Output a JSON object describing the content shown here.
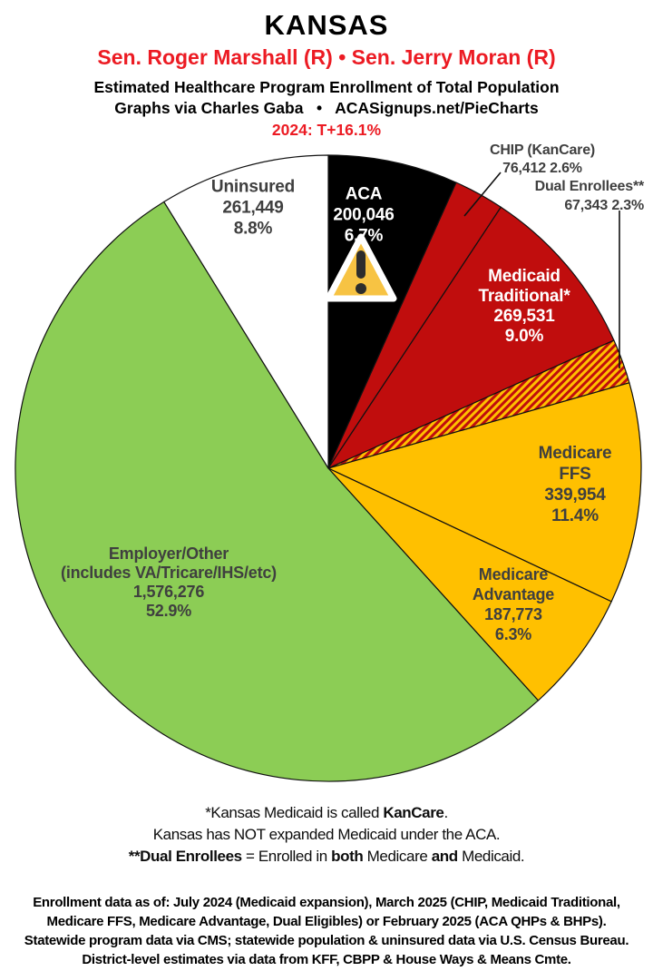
{
  "header": {
    "state": "KANSAS",
    "senators": "Sen. Roger Marshall (R) • Sen. Jerry Moran (R)",
    "subtitle1": "Estimated Healthcare Program Enrollment of Total Population",
    "subtitle2": "Graphs via Charles Gaba   •   ACASignups.net/PieCharts",
    "trend": "2024: T+16.1%"
  },
  "colors": {
    "header_red": "#EC1B23",
    "slice_red": "#C00D0D",
    "slice_gold": "#FFC000",
    "slice_green": "#8CCD55",
    "slice_black": "#000000",
    "slice_white": "#FFFFFF",
    "label_dark": "#3F3F3F",
    "warning_yellow": "#F7C343"
  },
  "chart_data": {
    "type": "pie",
    "title": "Estimated Healthcare Program Enrollment of Total Population",
    "start_angle_deg": 0,
    "direction": "clockwise",
    "legend_position": "labels-on-slices",
    "slices": [
      {
        "id": "aca",
        "name": "ACA",
        "value": 200046,
        "pct": 6.7,
        "color": "#000000",
        "label_lines": [
          "ACA",
          "200,046",
          "6.7%"
        ]
      },
      {
        "id": "chip",
        "name": "CHIP (KanCare)",
        "value": 76412,
        "pct": 2.6,
        "color": "#C00D0D",
        "label_lines": [
          "CHIP (KanCare)",
          "76,412 2.6%"
        ]
      },
      {
        "id": "medicaid-traditional",
        "name": "Medicaid Traditional*",
        "value": 269531,
        "pct": 9.0,
        "color": "#C00D0D",
        "label_lines": [
          "Medicaid",
          "Traditional*",
          "269,531",
          "9.0%"
        ]
      },
      {
        "id": "dual-enrollees",
        "name": "Dual Enrollees**",
        "value": 67343,
        "pct": 2.3,
        "color": "hatch",
        "label_lines": [
          "Dual Enrollees**",
          "67,343 2.3%"
        ]
      },
      {
        "id": "medicare-ffs",
        "name": "Medicare FFS",
        "value": 339954,
        "pct": 11.4,
        "color": "#FFC000",
        "label_lines": [
          "Medicare FFS",
          "339,954",
          "11.4%"
        ]
      },
      {
        "id": "medicare-advantage",
        "name": "Medicare Advantage",
        "value": 187773,
        "pct": 6.3,
        "color": "#FFC000",
        "label_lines": [
          "Medicare",
          "Advantage",
          "187,773",
          "6.3%"
        ]
      },
      {
        "id": "employer-other",
        "name": "Employer/Other (includes VA/Tricare/IHS/etc)",
        "value": 1576276,
        "pct": 52.9,
        "color": "#8CCD55",
        "label_lines": [
          "Employer/Other",
          "(includes VA/Tricare/IHS/etc)",
          "1,576,276",
          "52.9%"
        ]
      },
      {
        "id": "uninsured",
        "name": "Uninsured",
        "value": 261449,
        "pct": 8.8,
        "color": "#FFFFFF",
        "label_lines": [
          "Uninsured",
          "261,449",
          "8.8%"
        ]
      }
    ]
  },
  "notes": {
    "line1_pre": "*Kansas Medicaid is called ",
    "line1_bold": "KanCare",
    "line1_post": ".",
    "line2": "Kansas has NOT expanded Medicaid under the ACA.",
    "line3_bold1": "**Dual Enrollees",
    "line3_mid1": " = Enrolled in ",
    "line3_bold2": "both",
    "line3_mid2": " Medicare ",
    "line3_bold3": "and",
    "line3_post": " Medicaid."
  },
  "source": {
    "line1": "Enrollment data as of: July 2024 (Medicaid expansion), March 2025 (CHIP, Medicaid Traditional,",
    "line2": "Medicare FFS, Medicare Advantage, Dual Eligibles) or February 2025 (ACA QHPs & BHPs).",
    "line3": "Statewide program data via CMS; statewide population & uninsured data via U.S. Census Bureau.",
    "line4": "District-level estimates via data from KFF, CBPP & House Ways & Means Cmte."
  },
  "icons": {
    "warning": "warning-triangle"
  }
}
